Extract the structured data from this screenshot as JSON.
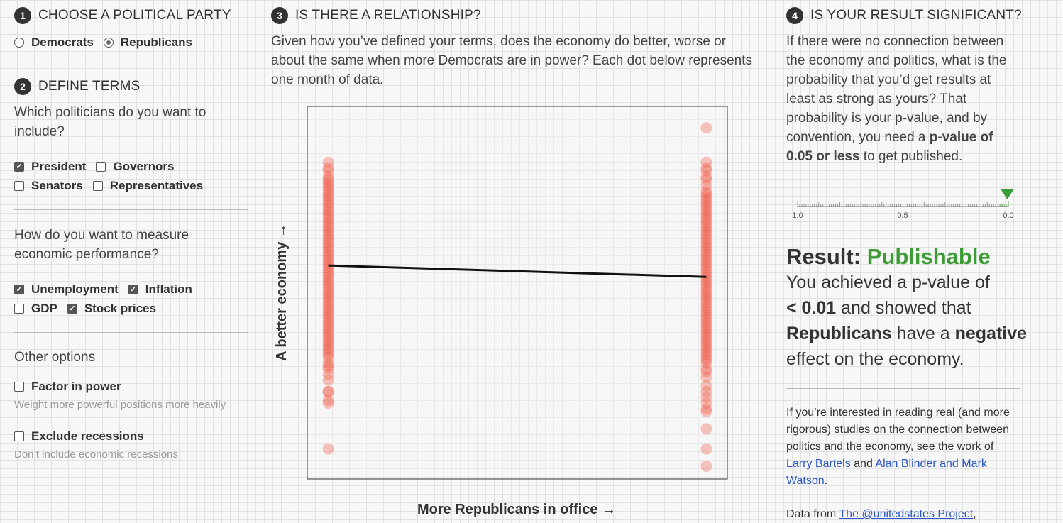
{
  "step1": {
    "num": "1",
    "title": "CHOOSE A POLITICAL PARTY",
    "options": [
      {
        "label": "Democrats",
        "selected": false
      },
      {
        "label": "Republicans",
        "selected": true
      }
    ]
  },
  "step2": {
    "num": "2",
    "title": "DEFINE TERMS",
    "politicians_prompt": "Which politicians do you want to include?",
    "politicians": [
      {
        "label": "President",
        "checked": true
      },
      {
        "label": "Governors",
        "checked": false
      },
      {
        "label": "Senators",
        "checked": false
      },
      {
        "label": "Representatives",
        "checked": false
      }
    ],
    "measure_prompt": "How do you want to measure economic performance?",
    "measures": [
      {
        "label": "Unemployment",
        "checked": true
      },
      {
        "label": "Inflation",
        "checked": true
      },
      {
        "label": "GDP",
        "checked": false
      },
      {
        "label": "Stock prices",
        "checked": true
      }
    ],
    "other_label": "Other options",
    "factor_label": "Factor in power",
    "factor_hint": "Weight more powerful positions more heavily",
    "exclude_label": "Exclude recessions",
    "exclude_hint": "Don’t include economic recessions"
  },
  "step3": {
    "num": "3",
    "title": "IS THERE A RELATIONSHIP?",
    "description": "Given how you’ve defined your terms, does the economy do better, worse or about the same when more Democrats are in power? Each dot below represents one month of data."
  },
  "chart_data": {
    "type": "scatter",
    "xlabel": "More Republicans in office →",
    "ylabel": "A better economy →",
    "xlim": [
      0,
      1
    ],
    "ylim": [
      0,
      1
    ],
    "point_color": "#f25a44",
    "left_group_x": 0.05,
    "right_group_x": 0.95,
    "left_y": [
      0.88,
      0.86,
      0.85,
      0.83,
      0.82,
      0.81,
      0.8,
      0.79,
      0.78,
      0.77,
      0.76,
      0.75,
      0.74,
      0.73,
      0.72,
      0.71,
      0.7,
      0.69,
      0.68,
      0.67,
      0.66,
      0.65,
      0.64,
      0.63,
      0.62,
      0.61,
      0.6,
      0.59,
      0.58,
      0.57,
      0.56,
      0.55,
      0.54,
      0.53,
      0.52,
      0.51,
      0.5,
      0.49,
      0.48,
      0.47,
      0.46,
      0.45,
      0.44,
      0.43,
      0.42,
      0.41,
      0.4,
      0.39,
      0.38,
      0.37,
      0.36,
      0.35,
      0.34,
      0.33,
      0.32,
      0.31,
      0.3,
      0.29,
      0.28,
      0.27,
      0.26,
      0.25,
      0.24,
      0.23,
      0.22,
      0.21,
      0.2,
      0.18,
      0.17,
      0.16,
      0.14,
      0.12,
      0.08,
      0.08,
      0.05,
      0.04,
      -0.12
    ],
    "right_y": [
      1.0,
      0.88,
      0.86,
      0.85,
      0.83,
      0.82,
      0.8,
      0.78,
      0.77,
      0.76,
      0.75,
      0.74,
      0.73,
      0.72,
      0.71,
      0.7,
      0.69,
      0.68,
      0.67,
      0.66,
      0.65,
      0.64,
      0.63,
      0.62,
      0.61,
      0.6,
      0.59,
      0.58,
      0.57,
      0.56,
      0.55,
      0.54,
      0.53,
      0.52,
      0.51,
      0.5,
      0.49,
      0.48,
      0.47,
      0.46,
      0.45,
      0.44,
      0.43,
      0.42,
      0.41,
      0.4,
      0.39,
      0.38,
      0.37,
      0.36,
      0.35,
      0.34,
      0.33,
      0.32,
      0.31,
      0.3,
      0.29,
      0.28,
      0.27,
      0.26,
      0.25,
      0.24,
      0.23,
      0.22,
      0.21,
      0.2,
      0.19,
      0.18,
      0.16,
      0.15,
      0.13,
      0.1,
      0.08,
      0.06,
      0.04,
      0.02,
      0.01,
      -0.05,
      -0.12,
      -0.18
    ],
    "trend": {
      "left_y": 0.52,
      "right_y": 0.48
    }
  },
  "step4": {
    "num": "4",
    "title": "IS YOUR RESULT SIGNIFICANT?",
    "description_1": "If there were no connection between the economy and politics, what is the probability that you’d get results at least as strong as yours? That probability is your p-value, and by convention, you need a ",
    "description_bold": "p-value of 0.05 or less",
    "description_2": " to get published.",
    "scale_ticks": [
      "1.0",
      "0.5",
      "0.0"
    ],
    "p_value": 0.005,
    "threshold": 0.05,
    "accent": "#3d9b35",
    "result_label": "Result:",
    "result_value": "Publishable",
    "summary_a": "You achieved a p-value of",
    "summary_p": "< 0.01",
    "summary_b": " and showed that",
    "summary_party": "Republicans",
    "summary_c": " have a ",
    "summary_effect": "negative",
    "summary_d": "effect on the economy.",
    "further_1": "If you’re interested in reading real (and more rigorous) studies on the connection between politics and the economy, see the work of ",
    "link1": "Larry Bartels",
    "further_2": " and ",
    "link2": "Alan Blinder and Mark Watson",
    "further_3": ".",
    "data_from": "Data from ",
    "link3": "The @unitedstates Project",
    "data_tail": ","
  }
}
